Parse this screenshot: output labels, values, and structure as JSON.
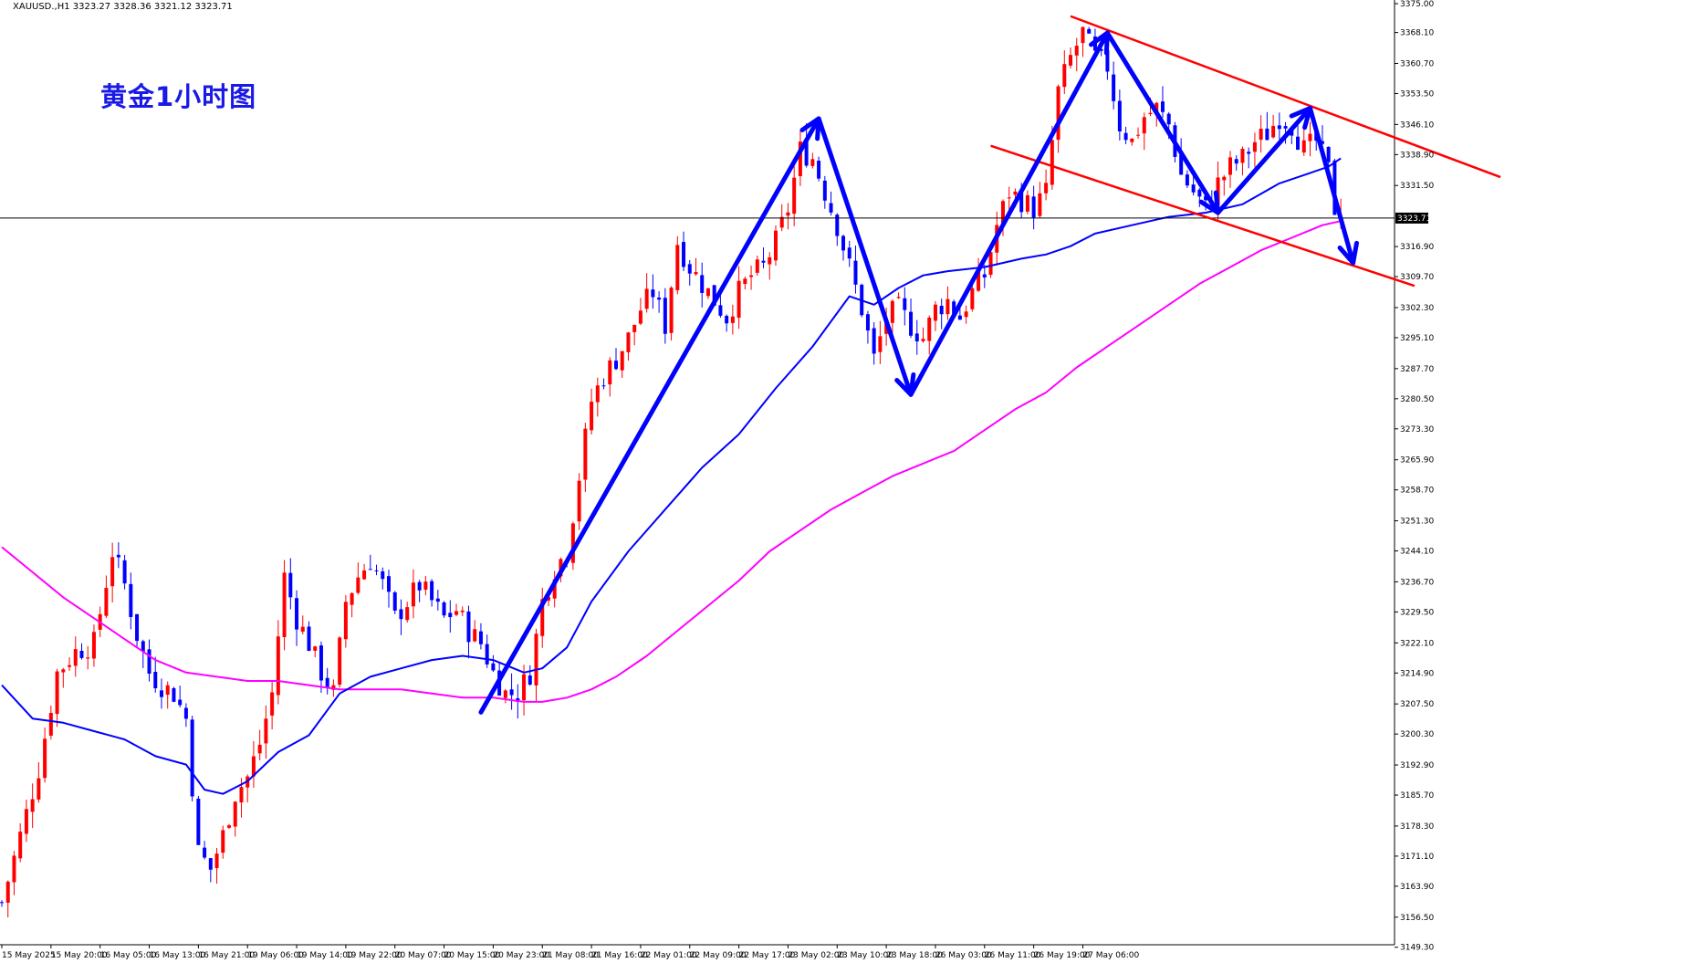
{
  "header": {
    "info_line": "XAUUSD.,H1  3323.27 3328.36 3321.12 3323.71"
  },
  "caption": "黄金1小时图",
  "colors": {
    "bull": "#ff0000",
    "bear": "#0000ff",
    "ma_fast": "#0000ff",
    "ma_slow": "#ff00ff",
    "trend_arrow": "#0000ff",
    "channel": "#ff0000",
    "price_line": "#000000",
    "grid": "#000000"
  },
  "chart_data": {
    "type": "candlestick",
    "instrument": "XAUUSD.",
    "timeframe": "H1",
    "ohlc_current": {
      "open": 3323.27,
      "high": 3328.36,
      "low": 3321.12,
      "close": 3323.71
    },
    "ylim": [
      3149.9,
      3375.0
    ],
    "y_ticks": [
      3375.0,
      3368.1,
      3360.7,
      3353.5,
      3346.1,
      3338.9,
      3331.5,
      3323.71,
      3316.9,
      3309.7,
      3302.3,
      3295.1,
      3287.7,
      3280.5,
      3273.3,
      3265.9,
      3258.7,
      3251.3,
      3244.1,
      3236.7,
      3229.5,
      3222.1,
      3214.9,
      3207.5,
      3200.3,
      3192.9,
      3185.7,
      3178.3,
      3171.1,
      3163.9,
      3156.5,
      3149.3
    ],
    "current_price_label": "3323.71",
    "x_labels": [
      "15 May 2025",
      "15 May 20:00",
      "16 May 05:00",
      "16 May 13:00",
      "16 May 21:00",
      "19 May 06:00",
      "19 May 14:00",
      "19 May 22:00",
      "20 May 07:00",
      "20 May 15:00",
      "20 May 23:00",
      "21 May 08:00",
      "21 May 16:00",
      "22 May 01:00",
      "22 May 09:00",
      "22 May 17:00",
      "23 May 02:00",
      "23 May 10:00",
      "23 May 18:00",
      "26 May 03:00",
      "26 May 11:00",
      "26 May 19:00",
      "27 May 06:00"
    ],
    "bars_per_label": 8,
    "price_path": [
      [
        0,
        3160
      ],
      [
        3,
        3176
      ],
      [
        6,
        3192
      ],
      [
        9,
        3215
      ],
      [
        12,
        3220
      ],
      [
        15,
        3222
      ],
      [
        18,
        3244
      ],
      [
        20,
        3236
      ],
      [
        22,
        3224
      ],
      [
        24,
        3215
      ],
      [
        26,
        3212
      ],
      [
        28,
        3210
      ],
      [
        30,
        3204
      ],
      [
        32,
        3172
      ],
      [
        34,
        3168
      ],
      [
        36,
        3176
      ],
      [
        38,
        3186
      ],
      [
        40,
        3190
      ],
      [
        42,
        3198
      ],
      [
        44,
        3210
      ],
      [
        46,
        3238
      ],
      [
        48,
        3228
      ],
      [
        50,
        3222
      ],
      [
        52,
        3215
      ],
      [
        54,
        3210
      ],
      [
        56,
        3232
      ],
      [
        58,
        3238
      ],
      [
        60,
        3242
      ],
      [
        62,
        3236
      ],
      [
        64,
        3228
      ],
      [
        66,
        3232
      ],
      [
        68,
        3236
      ],
      [
        70,
        3232
      ],
      [
        72,
        3228
      ],
      [
        74,
        3230
      ],
      [
        76,
        3225
      ],
      [
        78,
        3222
      ],
      [
        80,
        3215
      ],
      [
        82,
        3210
      ],
      [
        84,
        3210
      ],
      [
        86,
        3215
      ],
      [
        88,
        3232
      ],
      [
        90,
        3240
      ],
      [
        92,
        3244
      ],
      [
        94,
        3262
      ],
      [
        96,
        3280
      ],
      [
        98,
        3286
      ],
      [
        100,
        3290
      ],
      [
        102,
        3295
      ],
      [
        104,
        3302
      ],
      [
        106,
        3306
      ],
      [
        108,
        3298
      ],
      [
        110,
        3318
      ],
      [
        112,
        3312
      ],
      [
        114,
        3308
      ],
      [
        116,
        3304
      ],
      [
        118,
        3300
      ],
      [
        120,
        3306
      ],
      [
        122,
        3310
      ],
      [
        124,
        3312
      ],
      [
        126,
        3318
      ],
      [
        128,
        3326
      ],
      [
        130,
        3340
      ],
      [
        132,
        3338
      ],
      [
        134,
        3330
      ],
      [
        136,
        3322
      ],
      [
        138,
        3312
      ],
      [
        140,
        3302
      ],
      [
        142,
        3290
      ],
      [
        144,
        3300
      ],
      [
        146,
        3302
      ],
      [
        148,
        3298
      ],
      [
        150,
        3295
      ],
      [
        152,
        3302
      ],
      [
        154,
        3304
      ],
      [
        156,
        3300
      ],
      [
        158,
        3306
      ],
      [
        160,
        3310
      ],
      [
        162,
        3322
      ],
      [
        164,
        3330
      ],
      [
        166,
        3328
      ],
      [
        168,
        3326
      ],
      [
        170,
        3330
      ],
      [
        172,
        3354
      ],
      [
        174,
        3362
      ],
      [
        176,
        3368
      ],
      [
        178,
        3362
      ],
      [
        180,
        3360
      ],
      [
        182,
        3346
      ],
      [
        184,
        3342
      ],
      [
        186,
        3348
      ],
      [
        188,
        3350
      ],
      [
        190,
        3346
      ],
      [
        192,
        3334
      ],
      [
        194,
        3330
      ],
      [
        196,
        3326
      ],
      [
        198,
        3332
      ],
      [
        200,
        3336
      ],
      [
        202,
        3338
      ],
      [
        204,
        3342
      ],
      [
        206,
        3344
      ],
      [
        208,
        3348
      ],
      [
        210,
        3346
      ],
      [
        212,
        3340
      ],
      [
        214,
        3342
      ],
      [
        216,
        3335
      ],
      [
        217,
        3326
      ],
      [
        218,
        3323.71
      ]
    ],
    "ma_fast_points": [
      [
        0,
        3212
      ],
      [
        5,
        3204
      ],
      [
        10,
        3203
      ],
      [
        15,
        3201
      ],
      [
        20,
        3199
      ],
      [
        25,
        3195
      ],
      [
        30,
        3193
      ],
      [
        33,
        3187
      ],
      [
        36,
        3186
      ],
      [
        40,
        3189
      ],
      [
        45,
        3196
      ],
      [
        50,
        3200
      ],
      [
        55,
        3210
      ],
      [
        60,
        3214
      ],
      [
        65,
        3216
      ],
      [
        70,
        3218
      ],
      [
        75,
        3219
      ],
      [
        80,
        3218
      ],
      [
        85,
        3215
      ],
      [
        88,
        3216
      ],
      [
        92,
        3221
      ],
      [
        96,
        3232
      ],
      [
        102,
        3244
      ],
      [
        108,
        3254
      ],
      [
        114,
        3264
      ],
      [
        120,
        3272
      ],
      [
        126,
        3283
      ],
      [
        132,
        3293
      ],
      [
        138,
        3305
      ],
      [
        142,
        3303
      ],
      [
        146,
        3307
      ],
      [
        150,
        3310
      ],
      [
        154,
        3311
      ],
      [
        160,
        3312
      ],
      [
        166,
        3314
      ],
      [
        170,
        3315
      ],
      [
        174,
        3317
      ],
      [
        178,
        3320
      ],
      [
        184,
        3322
      ],
      [
        190,
        3324
      ],
      [
        196,
        3325
      ],
      [
        202,
        3327
      ],
      [
        208,
        3332
      ],
      [
        212,
        3334
      ],
      [
        216,
        3336
      ],
      [
        218,
        3338
      ]
    ],
    "ma_slow_points": [
      [
        0,
        3245
      ],
      [
        5,
        3239
      ],
      [
        10,
        3233
      ],
      [
        15,
        3228
      ],
      [
        20,
        3223
      ],
      [
        25,
        3218
      ],
      [
        30,
        3215
      ],
      [
        35,
        3214
      ],
      [
        40,
        3213
      ],
      [
        45,
        3213
      ],
      [
        50,
        3212
      ],
      [
        55,
        3211
      ],
      [
        60,
        3211
      ],
      [
        65,
        3211
      ],
      [
        70,
        3210
      ],
      [
        75,
        3209
      ],
      [
        80,
        3209
      ],
      [
        85,
        3208
      ],
      [
        88,
        3208
      ],
      [
        92,
        3209
      ],
      [
        96,
        3211
      ],
      [
        100,
        3214
      ],
      [
        105,
        3219
      ],
      [
        110,
        3225
      ],
      [
        115,
        3231
      ],
      [
        120,
        3237
      ],
      [
        125,
        3244
      ],
      [
        130,
        3249
      ],
      [
        135,
        3254
      ],
      [
        140,
        3258
      ],
      [
        145,
        3262
      ],
      [
        150,
        3265
      ],
      [
        155,
        3268
      ],
      [
        160,
        3273
      ],
      [
        165,
        3278
      ],
      [
        170,
        3282
      ],
      [
        175,
        3288
      ],
      [
        180,
        3293
      ],
      [
        185,
        3298
      ],
      [
        190,
        3303
      ],
      [
        195,
        3308
      ],
      [
        200,
        3312
      ],
      [
        205,
        3316
      ],
      [
        210,
        3319
      ],
      [
        215,
        3322
      ],
      [
        218,
        3323
      ]
    ],
    "trend_arrows": [
      [
        [
          78,
          3205.5
        ],
        [
          133,
          3347.5
        ]
      ],
      [
        [
          133,
          3347.5
        ],
        [
          148,
          3281.5
        ]
      ],
      [
        [
          148,
          3281.5
        ],
        [
          180,
          3368
        ]
      ],
      [
        [
          180,
          3368
        ],
        [
          198,
          3325
        ]
      ],
      [
        [
          198,
          3325
        ],
        [
          213,
          3350
        ]
      ],
      [
        [
          213,
          3350
        ],
        [
          220,
          3313
        ]
      ]
    ],
    "channel_lines": [
      [
        [
          174,
          3372
        ],
        [
          244,
          3333.5
        ]
      ],
      [
        [
          161,
          3341
        ],
        [
          230,
          3307.5
        ]
      ]
    ]
  }
}
